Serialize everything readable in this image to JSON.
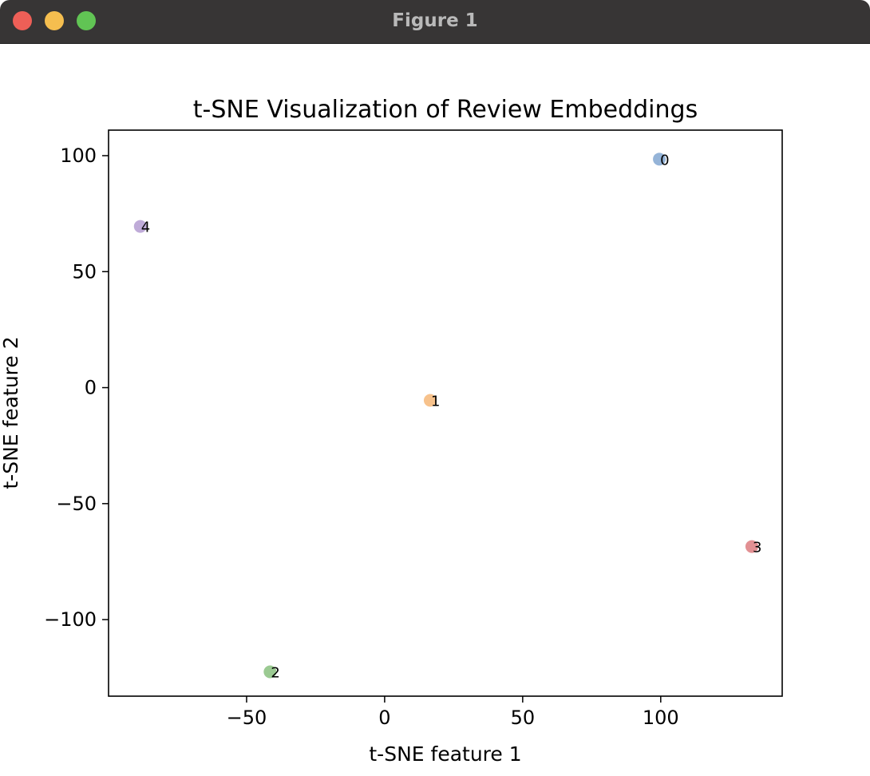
{
  "window": {
    "title": "Figure 1"
  },
  "chart_data": {
    "type": "scatter",
    "title": "t-SNE Visualization of Review Embeddings",
    "xlabel": "t-SNE feature 1",
    "ylabel": "t-SNE feature 2",
    "xlim": [
      -100,
      144
    ],
    "ylim": [
      -133,
      111
    ],
    "xticks": [
      -50,
      0,
      50,
      100
    ],
    "xtick_labels": [
      "−50",
      "0",
      "50",
      "100"
    ],
    "yticks": [
      100,
      50,
      0,
      -50,
      -100
    ],
    "ytick_labels": [
      "100",
      "50",
      "0",
      "−50",
      "−100"
    ],
    "grid": false,
    "points": [
      {
        "label": "0",
        "x": 99.5,
        "y": 98.5,
        "color": "#8fb0d6"
      },
      {
        "label": "1",
        "x": 16.5,
        "y": -5.5,
        "color": "#f7bf86"
      },
      {
        "label": "2",
        "x": -41.5,
        "y": -122.5,
        "color": "#96c78c"
      },
      {
        "label": "3",
        "x": 133,
        "y": -68.5,
        "color": "#e08a8d"
      },
      {
        "label": "4",
        "x": -88.5,
        "y": 69.5,
        "color": "#bca6d6"
      }
    ]
  }
}
